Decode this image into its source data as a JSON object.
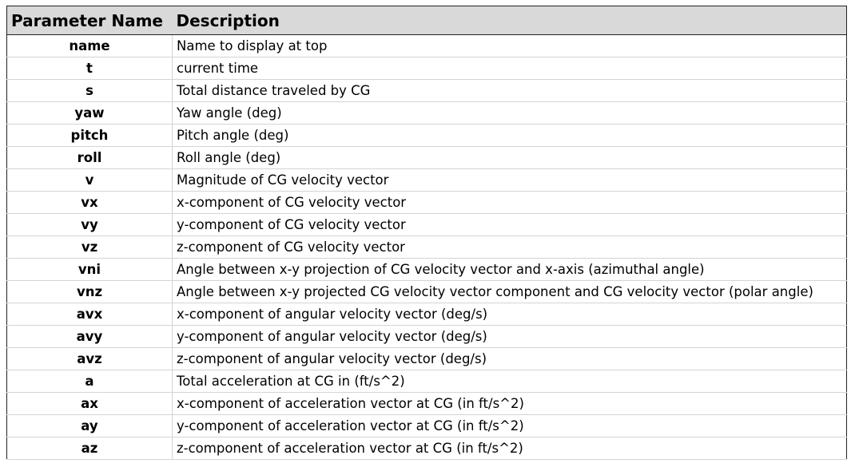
{
  "table": {
    "header": [
      "Parameter Name",
      "Description"
    ],
    "rows": [
      [
        "name",
        "Name to display at top"
      ],
      [
        "t",
        "current time"
      ],
      [
        "s",
        "Total distance traveled by CG"
      ],
      [
        "yaw",
        "Yaw angle (deg)"
      ],
      [
        "pitch",
        "Pitch angle (deg)"
      ],
      [
        "roll",
        "Roll angle (deg)"
      ],
      [
        "v",
        "Magnitude of CG velocity vector"
      ],
      [
        "vx",
        "x-component of CG velocity vector"
      ],
      [
        "vy",
        "y-component of CG velocity vector"
      ],
      [
        "vz",
        "z-component of CG velocity vector"
      ],
      [
        "vni",
        "Angle between x-y projection of CG velocity vector and x-axis (azimuthal angle)"
      ],
      [
        "vnz",
        "Angle between x-y projected CG velocity vector component and CG velocity vector (polar angle)"
      ],
      [
        "avx",
        "x-component of angular velocity vector (deg/s)"
      ],
      [
        "avy",
        "y-component of angular velocity vector (deg/s)"
      ],
      [
        "avz",
        "z-component of angular velocity vector (deg/s)"
      ],
      [
        "a",
        "Total acceleration at CG in (ft/s^2)"
      ],
      [
        "ax",
        "x-component of acceleration vector at CG (in ft/s^2)"
      ],
      [
        "ay",
        "y-component of acceleration vector at CG (in ft/s^2)"
      ],
      [
        "az",
        "z-component of acceleration vector at CG (in ft/s^2)"
      ]
    ]
  }
}
